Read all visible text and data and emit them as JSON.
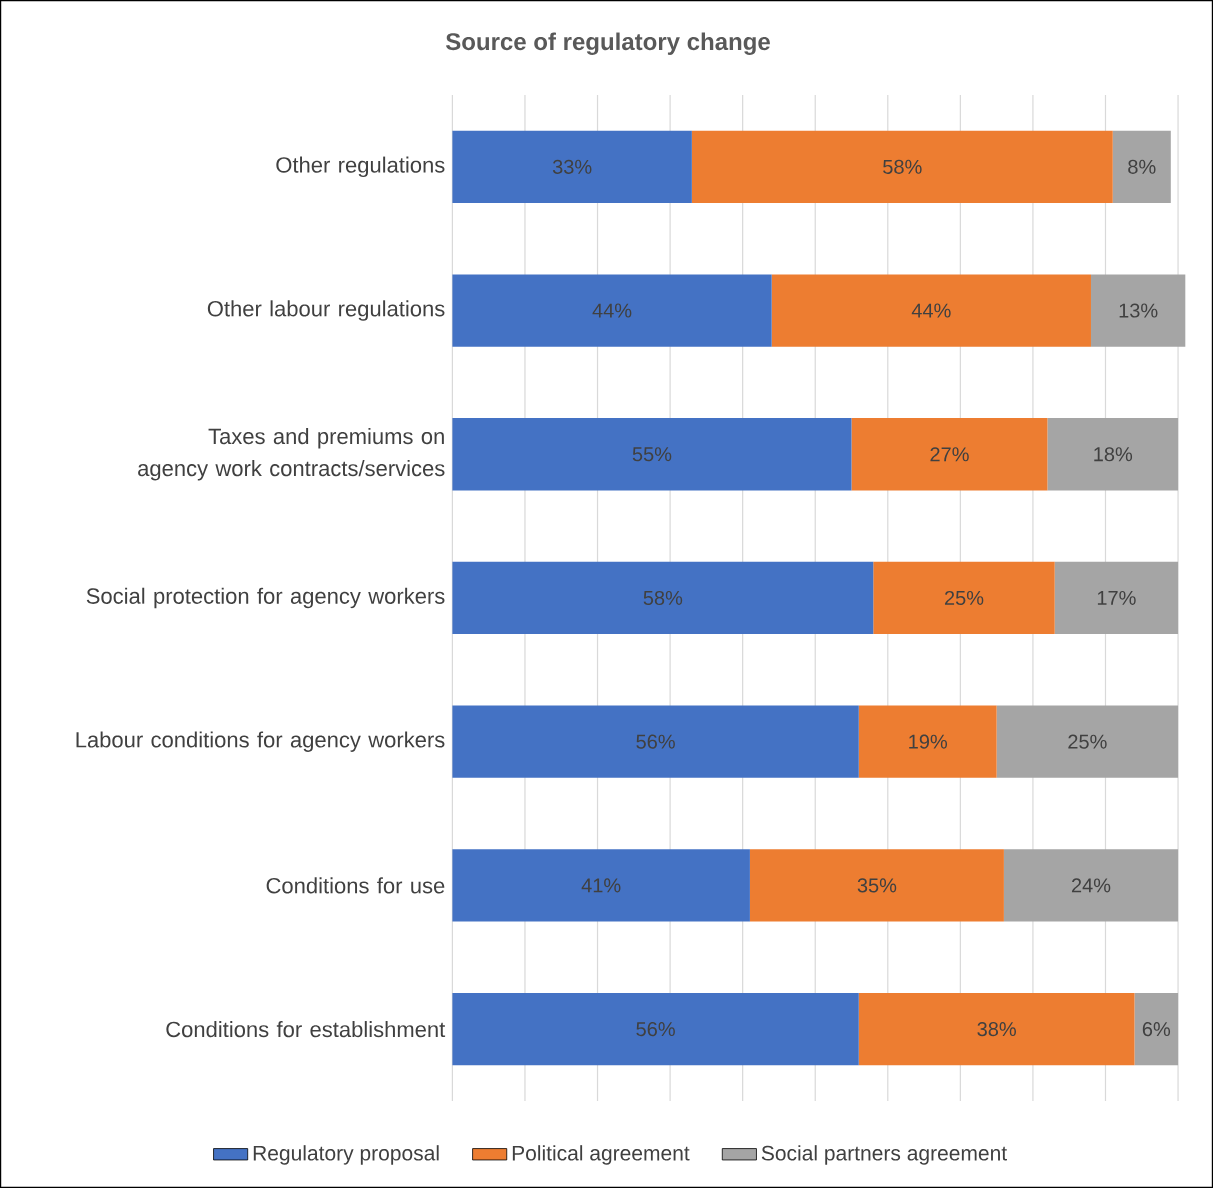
{
  "chart_data": {
    "type": "bar",
    "orientation": "horizontal",
    "stacked": true,
    "title": "Source of regulatory change",
    "categories": [
      "Other regulations",
      "Other labour regulations",
      "Taxes and premiums on agency work contracts/services",
      "Social protection for agency workers",
      "Labour conditions for agency workers",
      "Conditions for use",
      "Conditions for establishment"
    ],
    "series": [
      {
        "name": "Regulatory proposal",
        "color": "#4472c4",
        "values": [
          33,
          44,
          55,
          58,
          56,
          41,
          56
        ],
        "value_labels": [
          "33%",
          "44%",
          "55%",
          "58%",
          "56%",
          "41%",
          "56%"
        ]
      },
      {
        "name": "Political agreement",
        "color": "#ed7d31",
        "values": [
          58,
          44,
          27,
          25,
          19,
          35,
          38
        ],
        "value_labels": [
          "58%",
          "44%",
          "27%",
          "25%",
          "19%",
          "35%",
          "38%"
        ]
      },
      {
        "name": "Social partners agreement",
        "color": "#a5a5a5",
        "values": [
          8,
          13,
          18,
          17,
          25,
          24,
          6
        ],
        "value_labels": [
          "8%",
          "13%",
          "18%",
          "17%",
          "25%",
          "24%",
          "6%"
        ]
      }
    ],
    "xlim": [
      0,
      101
    ],
    "xticks": [
      {
        "value": 0,
        "label": null
      },
      {
        "value": 10,
        "label": null
      },
      {
        "value": 20,
        "label": null
      },
      {
        "value": 30,
        "label": null
      },
      {
        "value": 40,
        "label": null
      },
      {
        "value": 50,
        "label": null
      },
      {
        "value": 60,
        "label": null
      },
      {
        "value": 70,
        "label": null
      },
      {
        "value": 80,
        "label": null
      },
      {
        "value": 90,
        "label": null
      },
      {
        "value": 100,
        "label": null
      }
    ],
    "grid": "x",
    "legend": "bottom",
    "tick_labels": "y"
  }
}
